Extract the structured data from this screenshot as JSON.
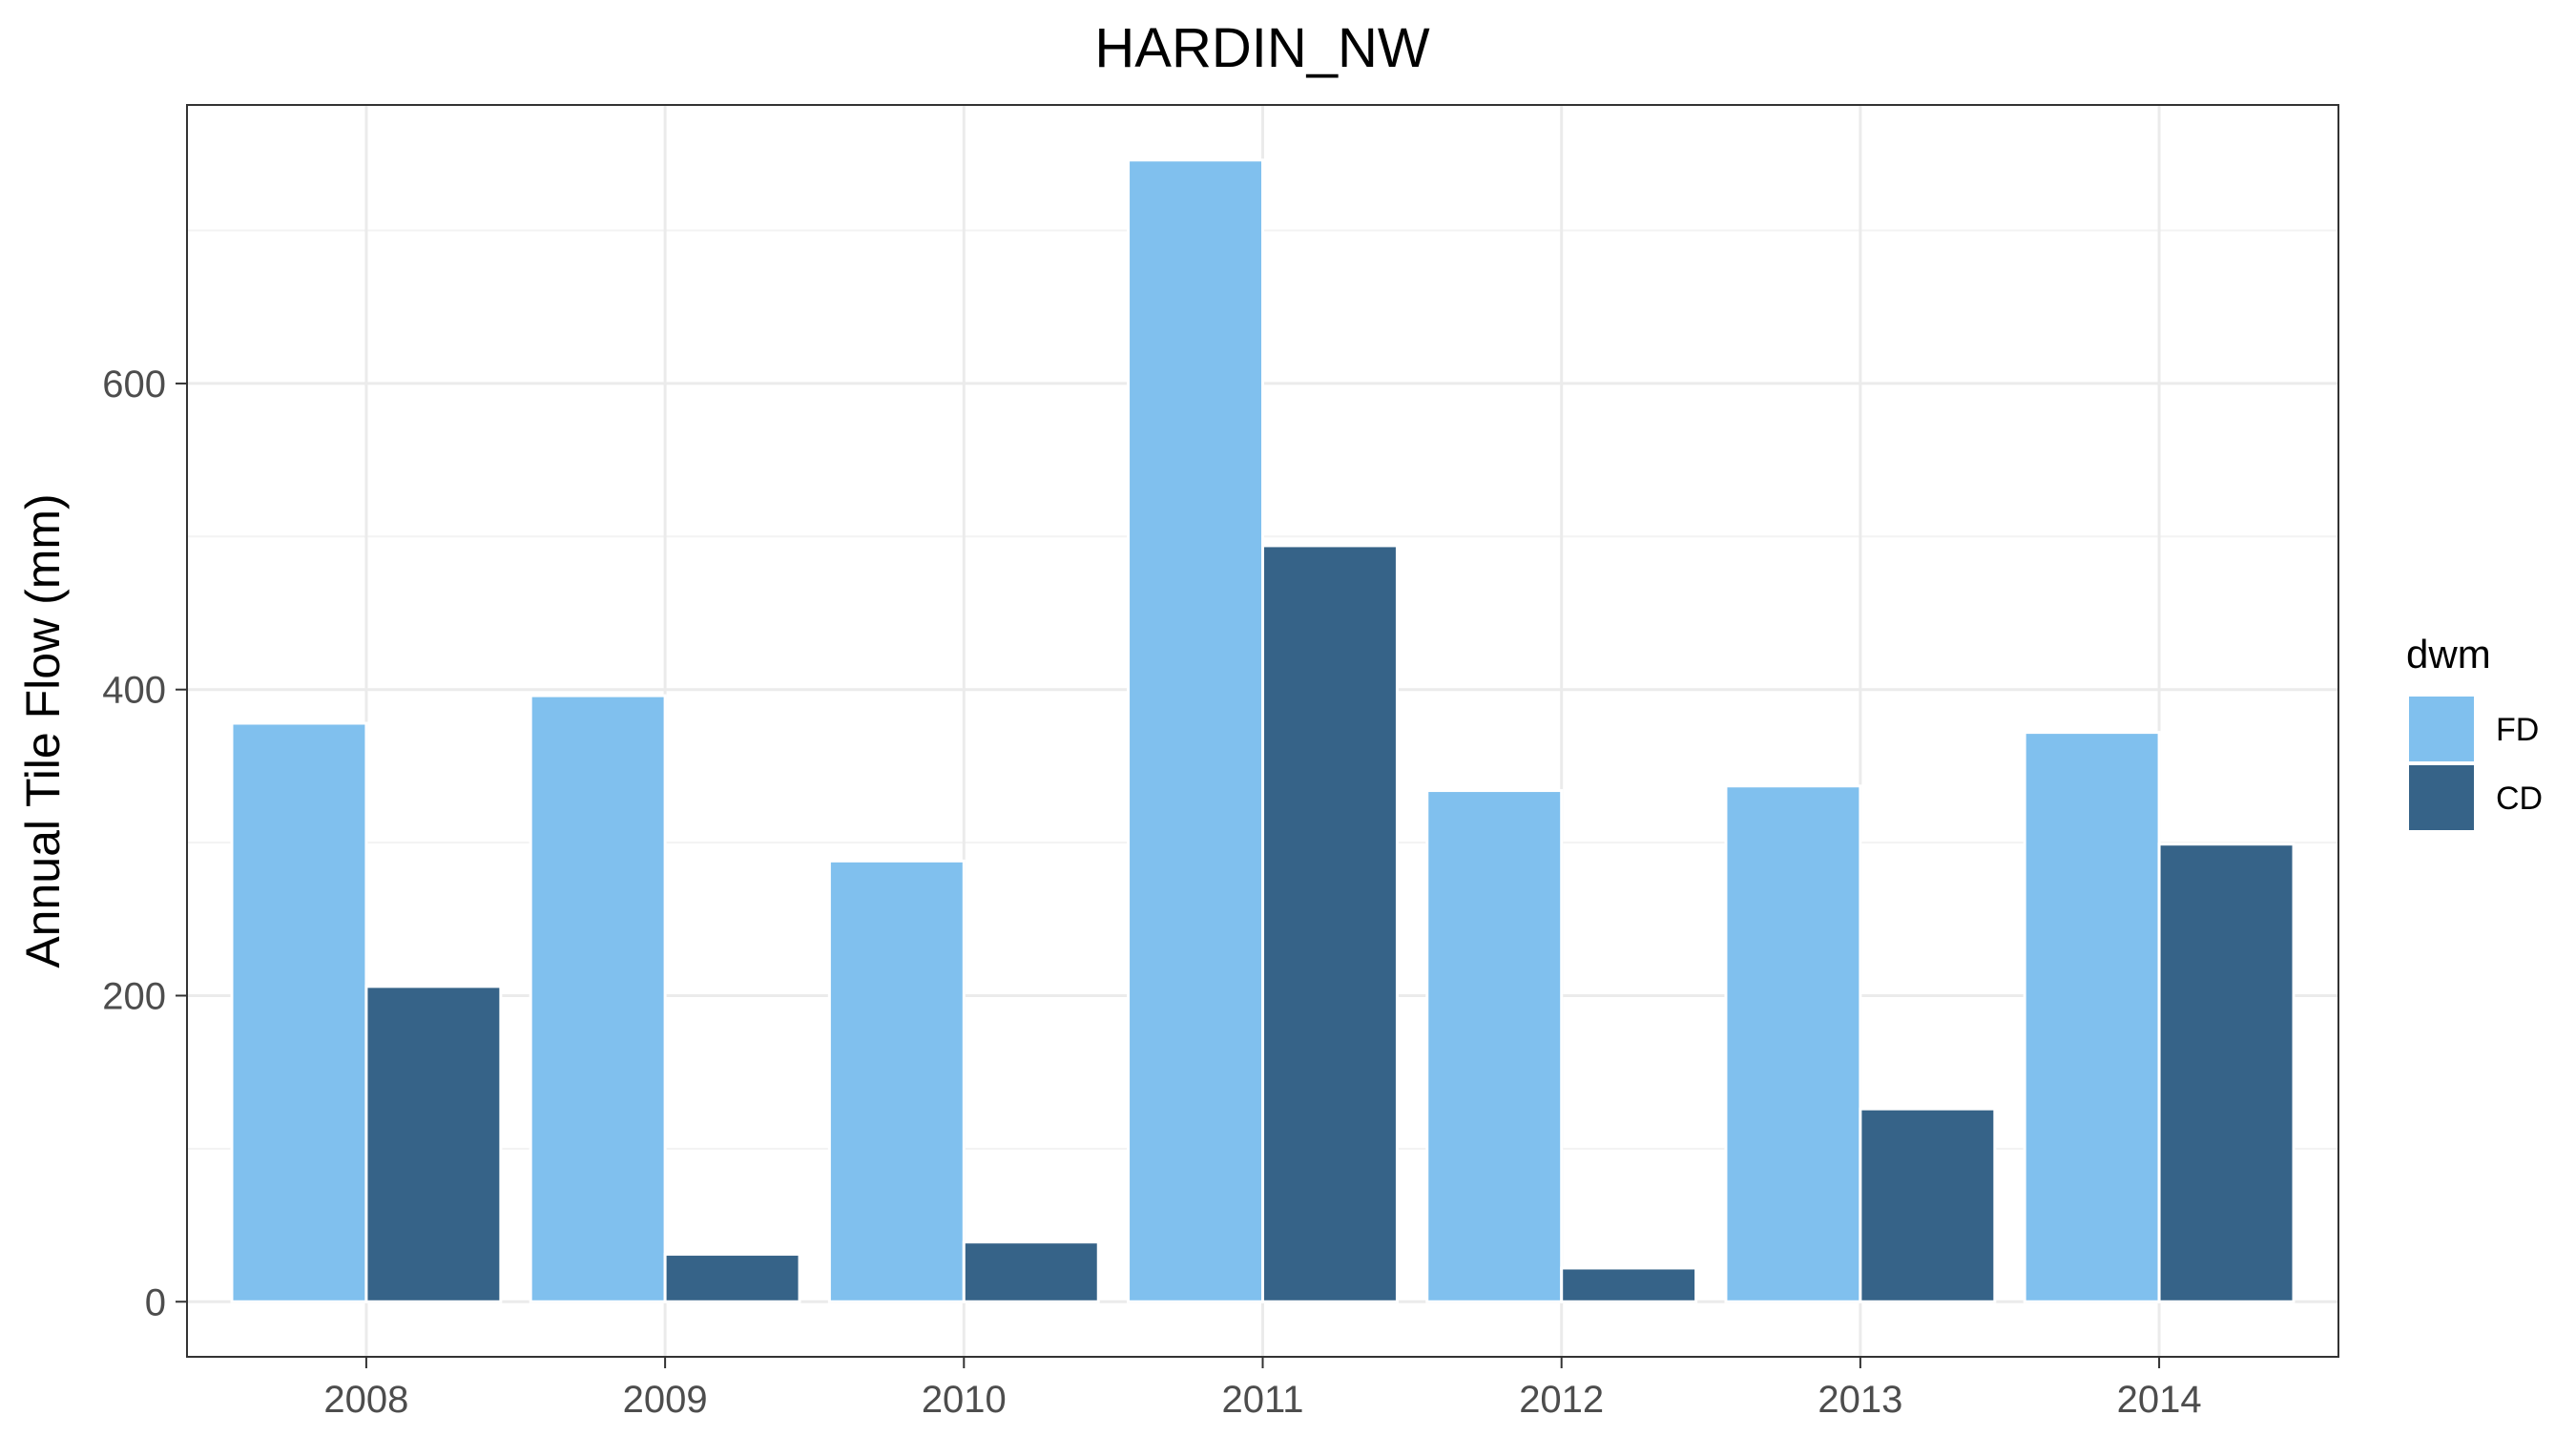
{
  "chart_data": {
    "type": "bar",
    "title": "HARDIN_NW",
    "xlabel": "",
    "ylabel": "Annual Tile Flow (mm)",
    "categories": [
      "2008",
      "2009",
      "2010",
      "2011",
      "2012",
      "2013",
      "2014"
    ],
    "series": [
      {
        "name": "FD",
        "color": "#80c0ee",
        "values": [
          378,
          396,
          288,
          746,
          334,
          337,
          372
        ]
      },
      {
        "name": "CD",
        "color": "#366388",
        "values": [
          206,
          31,
          39,
          494,
          22,
          126,
          299
        ]
      }
    ],
    "ylim": [
      -36,
      782
    ],
    "y_ticks": [
      0,
      200,
      400,
      600
    ],
    "y_tick_labels": [
      "0",
      "200",
      "400",
      "600"
    ],
    "grid": true,
    "legend": {
      "title": "dwm",
      "position": "right"
    },
    "colors": {
      "grid_major": "#ebebeb",
      "grid_minor": "#f3f3f3",
      "panel_border": "#333333",
      "tick_text": "#4d4d4d"
    }
  }
}
